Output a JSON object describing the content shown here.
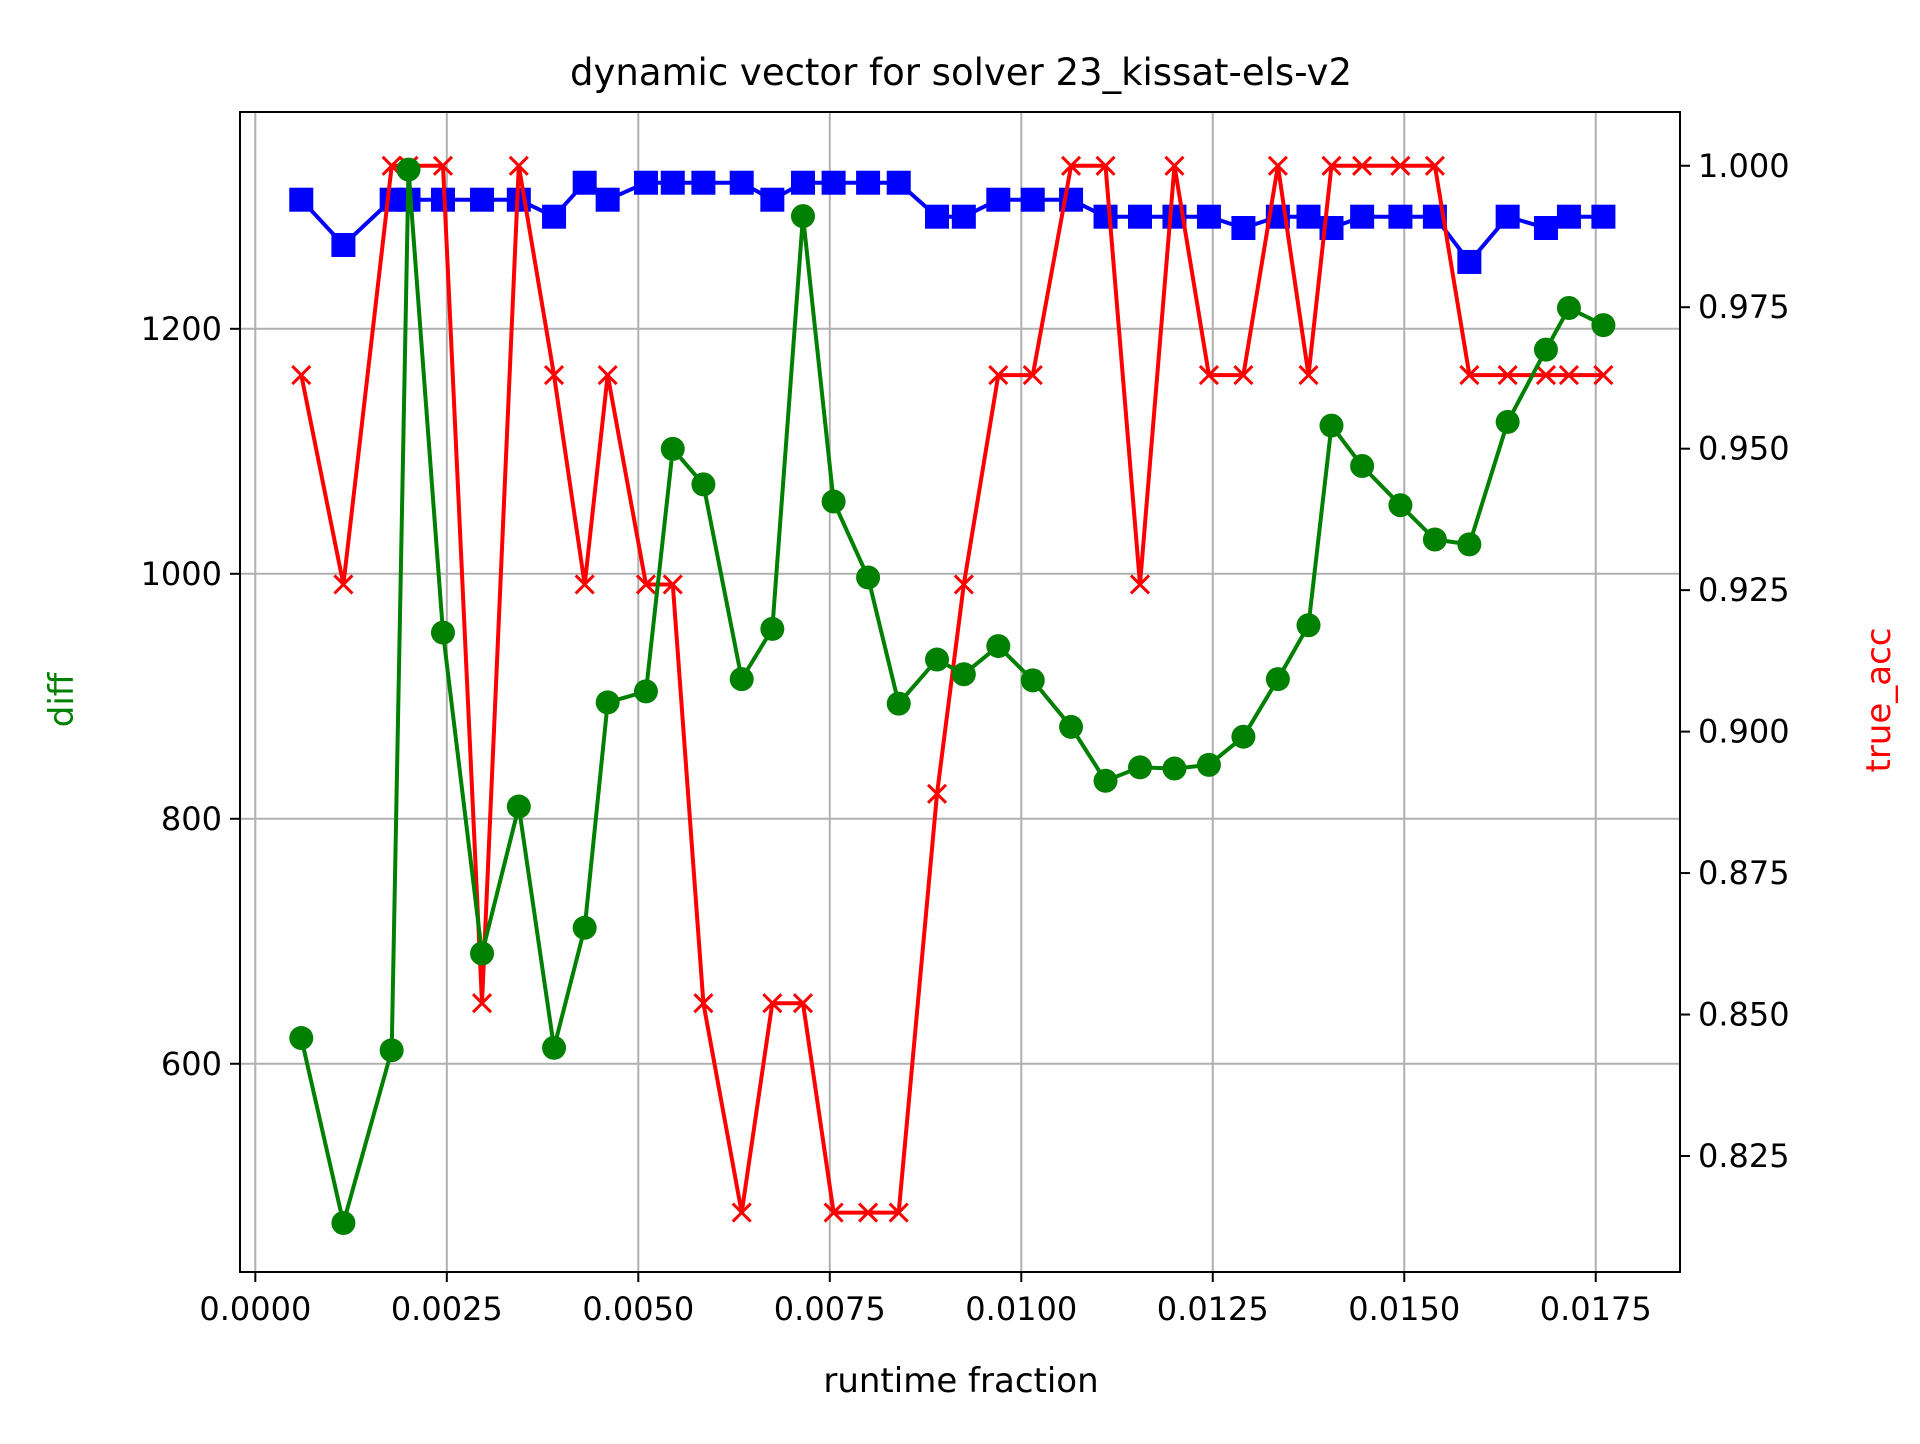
{
  "chart_data": {
    "type": "line",
    "title": "dynamic vector for solver 23_kissat-els-v2",
    "xlabel": "runtime fraction",
    "ylabel_left": "diff",
    "ylabel_right": "true_acc",
    "grid": true,
    "xlim": [
      -0.0002,
      0.0186
    ],
    "ylim_left": [
      430,
      1377
    ],
    "ylim_right": [
      0.8045,
      1.0095
    ],
    "x_ticks": [
      "0.0000",
      "0.0025",
      "0.0050",
      "0.0075",
      "0.0100",
      "0.0125",
      "0.0150",
      "0.0175"
    ],
    "y_left_ticks": [
      "600",
      "800",
      "1000",
      "1200"
    ],
    "y_right_ticks": [
      "0.825",
      "0.850",
      "0.875",
      "0.900",
      "0.925",
      "0.950",
      "0.975",
      "1.000"
    ],
    "colors": {
      "diff": "#008000",
      "true_acc": "#ff0000",
      "blue": "#0000ff"
    },
    "x": [
      0.0006,
      0.00115,
      0.00178,
      0.002,
      0.00245,
      0.00296,
      0.00344,
      0.0039,
      0.0043,
      0.0046,
      0.0051,
      0.00545,
      0.00585,
      0.00635,
      0.00675,
      0.00715,
      0.00755,
      0.008,
      0.0084,
      0.0089,
      0.00925,
      0.0097,
      0.01015,
      0.01065,
      0.0111,
      0.01155,
      0.012,
      0.01245,
      0.0129,
      0.01335,
      0.01375,
      0.01405,
      0.01445,
      0.01495,
      0.0154,
      0.01585,
      0.01635,
      0.01685,
      0.01715,
      0.0176
    ],
    "series": [
      {
        "key": "diff",
        "axis": "left",
        "marker": "circle",
        "values": [
          621,
          470,
          611,
          1330,
          952,
          690,
          810,
          613,
          711,
          895,
          904,
          1102,
          1073,
          914,
          955,
          1292,
          1059,
          997,
          894,
          930,
          918,
          941,
          913,
          875,
          831,
          842,
          841,
          844,
          867,
          914,
          958,
          1121,
          1088,
          1056,
          1028,
          1024,
          1124,
          1183,
          1217,
          1203
        ]
      },
      {
        "key": "true_acc",
        "axis": "right",
        "marker": "x",
        "values": [
          0.963,
          0.926,
          1.0,
          1.0,
          1.0,
          0.852,
          1.0,
          0.963,
          0.926,
          0.963,
          0.926,
          0.926,
          0.852,
          0.815,
          0.852,
          0.852,
          0.815,
          0.815,
          0.815,
          0.889,
          0.926,
          0.963,
          0.963,
          1.0,
          1.0,
          0.926,
          1.0,
          0.963,
          0.963,
          1.0,
          0.963,
          1.0,
          1.0,
          1.0,
          1.0,
          0.963,
          0.963,
          0.963,
          0.963,
          0.963
        ]
      },
      {
        "key": "blue",
        "axis": "right",
        "marker": "square",
        "values": [
          0.994,
          0.986,
          0.994,
          0.994,
          0.994,
          0.994,
          0.994,
          0.991,
          0.997,
          0.994,
          0.997,
          0.997,
          0.997,
          0.997,
          0.994,
          0.997,
          0.997,
          0.997,
          0.997,
          0.991,
          0.991,
          0.994,
          0.994,
          0.994,
          0.991,
          0.991,
          0.991,
          0.991,
          0.989,
          0.991,
          0.991,
          0.989,
          0.991,
          0.991,
          0.991,
          0.983,
          0.991,
          0.989,
          0.991,
          0.991
        ]
      }
    ]
  }
}
